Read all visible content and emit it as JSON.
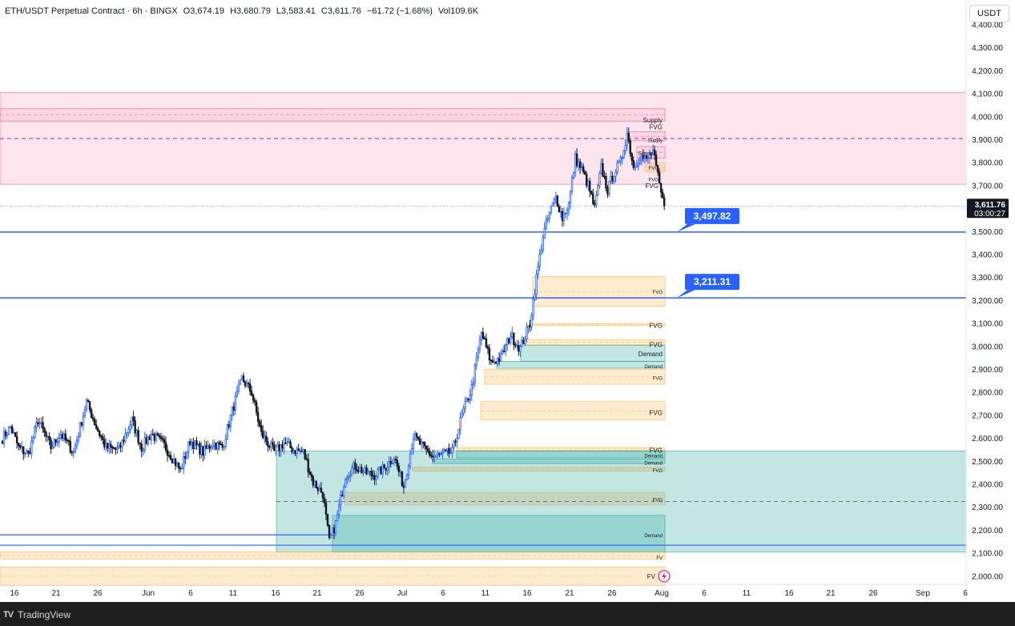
{
  "header": {
    "symbol": "ETH/USDT Perpetual Contract · 6h · BINGX",
    "open": "O3,674.19",
    "high": "H3,680.79",
    "low": "L3,583.41",
    "close": "C3,611.76",
    "change": "−61.72 (−1.68%)",
    "volume": "Vol109.6K"
  },
  "unit_button": "USDT",
  "footer": {
    "logo": "TV",
    "brand": "TradingView"
  },
  "chart_data": {
    "type": "candlestick",
    "y_ticks": [
      "2,000.00",
      "2,100.00",
      "2,200.00",
      "2,300.00",
      "2,400.00",
      "2,500.00",
      "2,600.00",
      "2,700.00",
      "2,800.00",
      "2,900.00",
      "3,000.00",
      "3,100.00",
      "3,200.00",
      "3,300.00",
      "3,400.00",
      "3,500.00",
      "3,600.00",
      "3,700.00",
      "3,800.00",
      "3,900.00",
      "4,000.00",
      "4,100.00",
      "4,200.00",
      "4,300.00",
      "4,400.00"
    ],
    "ylim": [
      1960,
      4440
    ],
    "x_ticks": [
      "16",
      "21",
      "26",
      "Jun",
      "6",
      "11",
      "16",
      "21",
      "26",
      "Jul",
      "6",
      "11",
      "16",
      "21",
      "26",
      "Aug",
      "6",
      "11",
      "16",
      "21",
      "26",
      "Sep",
      "6"
    ],
    "last_price": "3,611.76",
    "countdown": "03:00:27",
    "levels": [
      {
        "label": "3,497.82",
        "value": 3497.82
      },
      {
        "label": "3,211.31",
        "value": 3211.31
      }
    ],
    "zone_labels": {
      "supply_1": "Supply",
      "fvg_1": "FVG",
      "supply_2": "Supply",
      "supply_3": "Supply",
      "fvg_2": "FVG",
      "fvg_3": "FVG",
      "fvg_4": "FVG",
      "fvg_5": "FVG",
      "fvg_6": "FVG",
      "demand_1": "Demand",
      "demand_2": "Demand",
      "fvg_7": "FVG",
      "fvg_8": "FVG",
      "fvg_9": "FVG",
      "demand_3": "Demand",
      "demand_4": "Demand",
      "fvg_10": "FVG",
      "fvg_11": "FVG",
      "demand_5": "Demand",
      "fvg_12": "FVG",
      "fvg_13": "FV"
    },
    "colors": {
      "up": "#2962ff",
      "down": "#131722",
      "supply": "#f8bbd0",
      "demand": "#26a69a",
      "fvg": "#ffb74d",
      "level": "#2962ff"
    },
    "anchors": [
      [
        0,
        2600
      ],
      [
        5,
        2650
      ],
      [
        10,
        2560
      ],
      [
        16,
        2530
      ],
      [
        22,
        2680
      ],
      [
        30,
        2560
      ],
      [
        36,
        2620
      ],
      [
        44,
        2540
      ],
      [
        52,
        2760
      ],
      [
        58,
        2650
      ],
      [
        64,
        2560
      ],
      [
        72,
        2550
      ],
      [
        80,
        2680
      ],
      [
        86,
        2560
      ],
      [
        92,
        2620
      ],
      [
        100,
        2570
      ],
      [
        110,
        2460
      ],
      [
        116,
        2590
      ],
      [
        124,
        2540
      ],
      [
        130,
        2580
      ],
      [
        136,
        2560
      ],
      [
        142,
        2720
      ],
      [
        148,
        2860
      ],
      [
        154,
        2800
      ],
      [
        160,
        2620
      ],
      [
        168,
        2540
      ],
      [
        174,
        2580
      ],
      [
        180,
        2550
      ],
      [
        186,
        2540
      ],
      [
        192,
        2410
      ],
      [
        198,
        2360
      ],
      [
        202,
        2150
      ],
      [
        206,
        2230
      ],
      [
        212,
        2440
      ],
      [
        218,
        2480
      ],
      [
        224,
        2450
      ],
      [
        230,
        2440
      ],
      [
        236,
        2470
      ],
      [
        242,
        2520
      ],
      [
        248,
        2390
      ],
      [
        254,
        2610
      ],
      [
        260,
        2560
      ],
      [
        266,
        2520
      ],
      [
        272,
        2530
      ],
      [
        278,
        2540
      ],
      [
        284,
        2700
      ],
      [
        290,
        2820
      ],
      [
        296,
        3060
      ],
      [
        302,
        2930
      ],
      [
        308,
        2950
      ],
      [
        314,
        3050
      ],
      [
        320,
        2990
      ],
      [
        326,
        3100
      ],
      [
        330,
        3300
      ],
      [
        334,
        3480
      ],
      [
        338,
        3580
      ],
      [
        342,
        3650
      ],
      [
        346,
        3560
      ],
      [
        350,
        3620
      ],
      [
        354,
        3820
      ],
      [
        358,
        3770
      ],
      [
        362,
        3700
      ],
      [
        366,
        3600
      ],
      [
        370,
        3780
      ],
      [
        374,
        3680
      ],
      [
        378,
        3760
      ],
      [
        382,
        3800
      ],
      [
        386,
        3930
      ],
      [
        390,
        3780
      ],
      [
        394,
        3830
      ],
      [
        398,
        3810
      ],
      [
        402,
        3850
      ],
      [
        406,
        3700
      ],
      [
        409,
        3600
      ]
    ],
    "seed": 7
  }
}
